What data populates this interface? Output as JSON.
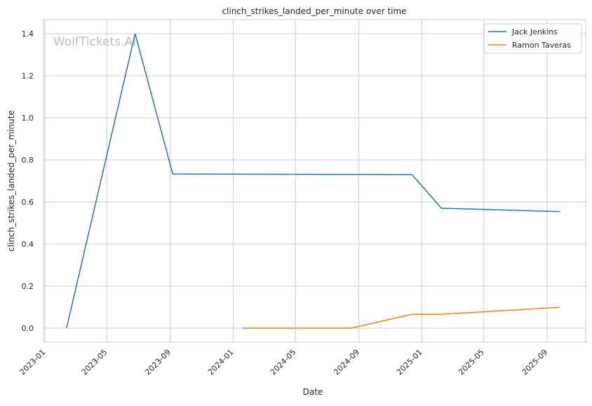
{
  "chart_data": {
    "type": "line",
    "title": "clinch_strikes_landed_per_minute over time",
    "xlabel": "Date",
    "ylabel": "clinch_strikes_landed_per_minute",
    "watermark": "WolfTickets.AI",
    "grid": true,
    "legend_placement": "top-right",
    "xlim": [
      "2022-12-01",
      "2025-11-10"
    ],
    "ylim": [
      -0.07,
      1.47
    ],
    "x_ticks": [
      "2023-01",
      "2023-05",
      "2023-09",
      "2024-01",
      "2024-05",
      "2024-09",
      "2025-01",
      "2025-05",
      "2025-09"
    ],
    "y_ticks": [
      0.0,
      0.2,
      0.4,
      0.6,
      0.8,
      1.0,
      1.2,
      1.4
    ],
    "series": [
      {
        "name": "Jack Jenkins",
        "color": "#1f77b4",
        "x": [
          "2023-02-12",
          "2023-06-25",
          "2023-09-06",
          "2024-12-13",
          "2025-02-08",
          "2025-09-26"
        ],
        "y": [
          0.0,
          1.4,
          0.733,
          0.73,
          0.57,
          0.554
        ]
      },
      {
        "name": "Ramon Taveras",
        "color": "#ff7f0e",
        "x": [
          "2024-01-19",
          "2024-08-17",
          "2024-12-13",
          "2025-02-08",
          "2025-09-26"
        ],
        "y": [
          0.0,
          0.0,
          0.066,
          0.066,
          0.099
        ]
      }
    ]
  }
}
